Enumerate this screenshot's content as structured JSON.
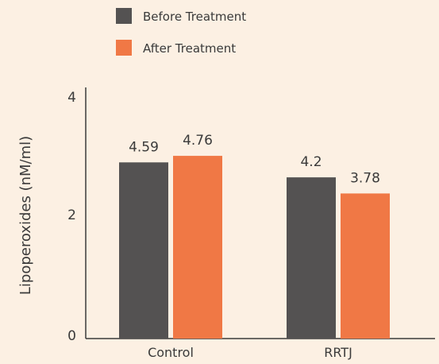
{
  "chart_data": {
    "type": "bar",
    "categories": [
      "Control",
      "RRTJ"
    ],
    "series": [
      {
        "name": "Before Treatment",
        "values": [
          4.59,
          4.2
        ],
        "color": "#545252"
      },
      {
        "name": "After Treatment",
        "values": [
          4.76,
          3.78
        ],
        "color": "#f07845"
      }
    ],
    "data_labels": [
      [
        "4.59",
        "4.2"
      ],
      [
        "4.76",
        "3.78"
      ]
    ],
    "title": "",
    "xlabel": "",
    "ylabel": "Lipoperoxides (nM/ml)",
    "y_tick_labels": [
      "0",
      "2",
      "4"
    ],
    "legend_position": "top",
    "grid": false
  }
}
